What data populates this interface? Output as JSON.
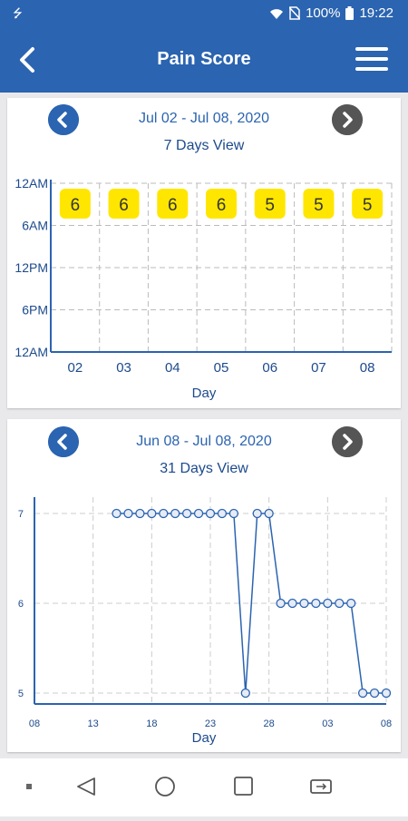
{
  "status_bar": {
    "battery": "100%",
    "time": "19:22",
    "icons": [
      "usb-icon",
      "wifi-icon",
      "no-sim-icon",
      "battery-icon"
    ]
  },
  "app_bar": {
    "title": "Pain Score",
    "back_icon": "chevron-left-icon",
    "menu_icon": "hamburger-menu-icon"
  },
  "card_week": {
    "date_range": "Jul 02 - Jul 08, 2020",
    "view_title": "7 Days View"
  },
  "card_month": {
    "date_range": "Jun 08 - Jul 08, 2020",
    "view_title": "31 Days View"
  },
  "colors": {
    "primary": "#2b64b0",
    "badge": "#ffe600",
    "axis": "#2b64b0"
  },
  "chart_data": [
    {
      "type": "scatter",
      "xlabel": "Day",
      "ylabel": "",
      "categories": [
        "02",
        "03",
        "04",
        "05",
        "06",
        "07",
        "08"
      ],
      "y_ticks": [
        "12AM",
        "6AM",
        "12PM",
        "6PM",
        "12AM"
      ],
      "series": [
        {
          "values": [
            6,
            6,
            6,
            6,
            5,
            5,
            5
          ]
        }
      ],
      "grid": true
    },
    {
      "type": "line",
      "xlabel": "Day",
      "ylabel": "",
      "x_ticks": [
        "08",
        "13",
        "18",
        "23",
        "28",
        "03",
        "08"
      ],
      "y_ticks": [
        5,
        6,
        7
      ],
      "ylim": [
        5,
        7
      ],
      "x": [
        "06-15",
        "06-16",
        "06-17",
        "06-18",
        "06-19",
        "06-20",
        "06-21",
        "06-22",
        "06-23",
        "06-24",
        "06-25",
        "06-26",
        "06-27",
        "06-28",
        "06-29",
        "06-30",
        "07-01",
        "07-02",
        "07-03",
        "07-04",
        "07-05",
        "07-06",
        "07-07",
        "07-08"
      ],
      "series": [
        {
          "values": [
            7,
            7,
            7,
            7,
            7,
            7,
            7,
            7,
            7,
            7,
            7,
            5,
            7,
            7,
            6,
            6,
            6,
            6,
            6,
            6,
            6,
            5,
            5,
            5
          ]
        }
      ],
      "grid": true
    }
  ],
  "nav_bar": {
    "icons": [
      "dot-icon",
      "back-triangle-icon",
      "home-circle-icon",
      "recents-square-icon",
      "switch-app-icon"
    ]
  }
}
